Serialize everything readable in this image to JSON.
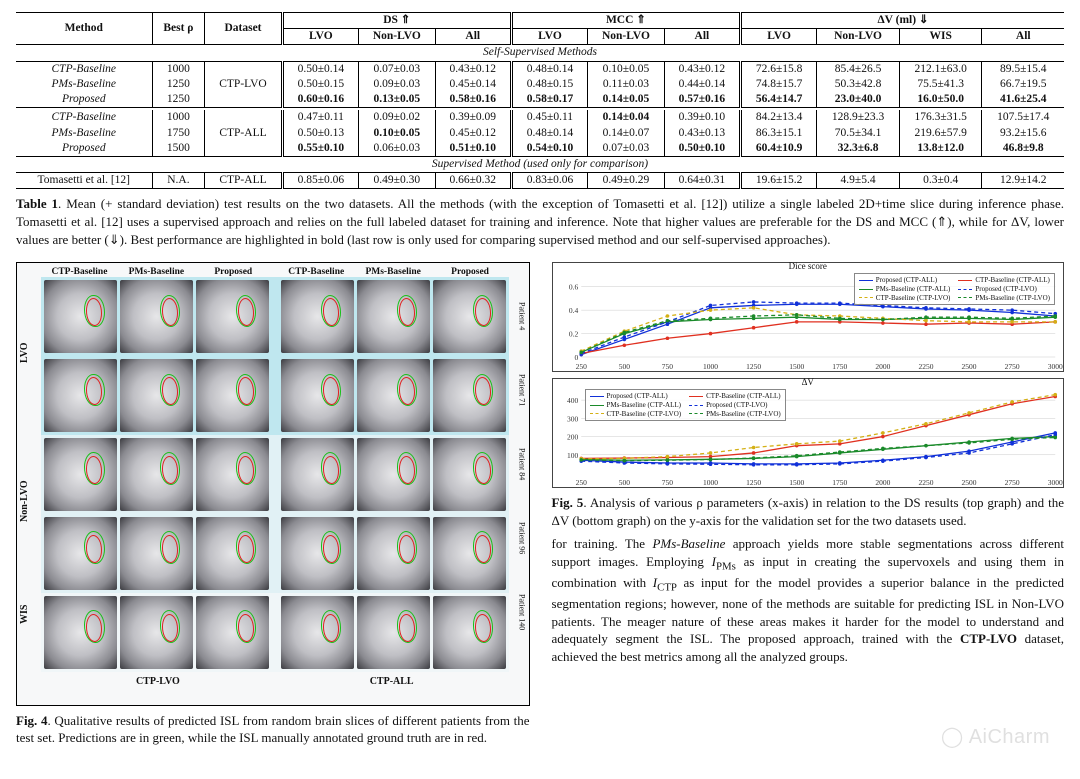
{
  "table": {
    "header": {
      "method": "Method",
      "bestrho": "Best ρ",
      "dataset": "Dataset",
      "ds": "DS ⇑",
      "mcc": "MCC ⇑",
      "dv": "ΔV (ml) ⇓",
      "sub": {
        "lvo": "LVO",
        "nonlvo": "Non-LVO",
        "all": "All",
        "wis": "WIS"
      }
    },
    "section_self": "Self-Supervised Methods",
    "section_sup": "Supervised Method (used only for comparison)",
    "groups": [
      {
        "dataset": "CTP-LVO",
        "rows": [
          {
            "m": "CTP-Baseline",
            "rho": "1000",
            "ds": [
              "0.50±0.14",
              "0.07±0.03",
              "0.43±0.12"
            ],
            "mcc": [
              "0.48±0.14",
              "0.10±0.05",
              "0.43±0.12"
            ],
            "dv": [
              "72.6±15.8",
              "85.4±26.5",
              "212.1±63.0",
              "89.5±15.4"
            ],
            "bold": []
          },
          {
            "m": "PMs-Baseline",
            "rho": "1250",
            "ds": [
              "0.50±0.15",
              "0.09±0.03",
              "0.45±0.14"
            ],
            "mcc": [
              "0.48±0.15",
              "0.11±0.03",
              "0.44±0.14"
            ],
            "dv": [
              "74.8±15.7",
              "50.3±42.8",
              "75.5±41.3",
              "66.7±19.5"
            ],
            "bold": []
          },
          {
            "m": "Proposed",
            "rho": "1250",
            "ds": [
              "0.60±0.16",
              "0.13±0.05",
              "0.58±0.16"
            ],
            "mcc": [
              "0.58±0.17",
              "0.14±0.05",
              "0.57±0.16"
            ],
            "dv": [
              "56.4±14.7",
              "23.0±40.0",
              "16.0±50.0",
              "41.6±25.4"
            ],
            "bold": [
              "ds0",
              "ds1",
              "ds2",
              "mcc0",
              "mcc1",
              "mcc2",
              "dv0",
              "dv1",
              "dv2",
              "dv3"
            ]
          }
        ]
      },
      {
        "dataset": "CTP-ALL",
        "rows": [
          {
            "m": "CTP-Baseline",
            "rho": "1000",
            "ds": [
              "0.47±0.11",
              "0.09±0.02",
              "0.39±0.09"
            ],
            "mcc": [
              "0.45±0.11",
              "0.14±0.04",
              "0.39±0.10"
            ],
            "dv": [
              "84.2±13.4",
              "128.9±23.3",
              "176.3±31.5",
              "107.5±17.4"
            ],
            "bold": [
              "mcc1"
            ]
          },
          {
            "m": "PMs-Baseline",
            "rho": "1750",
            "ds": [
              "0.50±0.13",
              "0.10±0.05",
              "0.45±0.12"
            ],
            "mcc": [
              "0.48±0.14",
              "0.14±0.07",
              "0.43±0.13"
            ],
            "dv": [
              "86.3±15.1",
              "70.5±34.1",
              "219.6±57.9",
              "93.2±15.6"
            ],
            "bold": [
              "ds1"
            ]
          },
          {
            "m": "Proposed",
            "rho": "1500",
            "ds": [
              "0.55±0.10",
              "0.06±0.03",
              "0.51±0.10"
            ],
            "mcc": [
              "0.54±0.10",
              "0.07±0.03",
              "0.50±0.10"
            ],
            "dv": [
              "60.4±10.9",
              "32.3±6.8",
              "13.8±12.0",
              "46.8±9.8"
            ],
            "bold": [
              "ds0",
              "ds2",
              "mcc0",
              "mcc2",
              "dv0",
              "dv1",
              "dv2",
              "dv3"
            ]
          }
        ]
      }
    ],
    "supervised": {
      "m": "Tomasetti et al. [12]",
      "rho": "N.A.",
      "dataset": "CTP-ALL",
      "ds": [
        "0.85±0.06",
        "0.49±0.30",
        "0.66±0.32"
      ],
      "mcc": [
        "0.83±0.06",
        "0.49±0.29",
        "0.64±0.31"
      ],
      "dv": [
        "19.6±15.2",
        "4.9±5.4",
        "0.3±0.4",
        "12.9±14.2"
      ]
    }
  },
  "table_caption": "Table 1. Mean (+ standard deviation) test results on the two datasets. All the methods (with the exception of Tomasetti et al. [12]) utilize a single labeled 2D+time slice during inference phase. Tomasetti et al. [12] uses a supervised approach and relies on the full labeled dataset for training and inference. Note that higher values are preferable for the DS and MCC (⇑), while for ΔV, lower values are better (⇓). Best performance are highlighted in bold (last row is only used for comparing supervised method and our self-supervised approaches).",
  "fig4": {
    "col_hdrs": [
      "CTP-Baseline",
      "PMs-Baseline",
      "Proposed"
    ],
    "row_groups": [
      {
        "label": "LVO",
        "tint": "tint-lvo",
        "patients": [
          "Patient 4",
          "Patient 71"
        ]
      },
      {
        "label": "Non-LVO",
        "tint": "tint-nlvo",
        "patients": [
          "Patient 84",
          "Patient 96"
        ]
      },
      {
        "label": "WIS",
        "tint": "tint-wis",
        "patients": [
          "Patient 140"
        ]
      }
    ],
    "bottom": [
      "CTP-LVO",
      "CTP-ALL"
    ],
    "caption": "Fig. 4. Qualitative results of predicted ISL from random brain slices of different patients from the test set. Predictions are in green, while the ISL manually annotated ground truth are in red."
  },
  "fig5": {
    "x_ticks": [
      250,
      500,
      750,
      1000,
      1250,
      1500,
      1750,
      2000,
      2250,
      2500,
      2750,
      3000
    ],
    "colors": {
      "prop": "#1030d8",
      "ctp": "#e03020",
      "pms": "#1a8a2a",
      "alt": "#d4b015"
    },
    "top": {
      "title": "Dice score",
      "ylim": [
        0,
        0.7
      ],
      "y_ticks": [
        0,
        0.2,
        0.4,
        0.6
      ],
      "legend_pos": "tr",
      "series": [
        {
          "name": "Proposed (CTP-ALL)",
          "color": "prop",
          "dash": false,
          "y": [
            0.02,
            0.15,
            0.28,
            0.42,
            0.44,
            0.45,
            0.45,
            0.43,
            0.41,
            0.4,
            0.38,
            0.35
          ]
        },
        {
          "name": "CTP-Baseline (CTP-ALL)",
          "color": "ctp",
          "dash": false,
          "y": [
            0.03,
            0.1,
            0.16,
            0.2,
            0.25,
            0.3,
            0.3,
            0.29,
            0.28,
            0.29,
            0.28,
            0.3
          ]
        },
        {
          "name": "PMs-Baseline (CTP-ALL)",
          "color": "pms",
          "dash": false,
          "y": [
            0.04,
            0.2,
            0.3,
            0.32,
            0.33,
            0.34,
            0.32,
            0.32,
            0.33,
            0.33,
            0.32,
            0.34
          ]
        },
        {
          "name": "Proposed (CTP-LVO)",
          "color": "prop",
          "dash": true,
          "y": [
            0.03,
            0.17,
            0.3,
            0.44,
            0.47,
            0.46,
            0.46,
            0.44,
            0.42,
            0.41,
            0.4,
            0.37
          ]
        },
        {
          "name": "CTP-Baseline (CTP-LVO)",
          "color": "alt",
          "dash": true,
          "y": [
            0.05,
            0.22,
            0.35,
            0.4,
            0.42,
            0.36,
            0.35,
            0.33,
            0.31,
            0.3,
            0.3,
            0.3
          ]
        },
        {
          "name": "PMs-Baseline (CTP-LVO)",
          "color": "pms",
          "dash": true,
          "y": [
            0.04,
            0.21,
            0.31,
            0.33,
            0.35,
            0.36,
            0.33,
            0.32,
            0.34,
            0.34,
            0.33,
            0.35
          ]
        }
      ]
    },
    "bottom": {
      "title": "ΔV",
      "ylim": [
        0,
        450
      ],
      "y_ticks": [
        100,
        200,
        300,
        400
      ],
      "legend_pos": "tl",
      "series": [
        {
          "name": "Proposed (CTP-ALL)",
          "color": "prop",
          "dash": false,
          "y": [
            70,
            60,
            55,
            55,
            50,
            50,
            55,
            70,
            90,
            120,
            170,
            220
          ]
        },
        {
          "name": "CTP-Baseline (CTP-ALL)",
          "color": "ctp",
          "dash": false,
          "y": [
            80,
            82,
            85,
            90,
            110,
            150,
            160,
            200,
            260,
            320,
            380,
            420
          ]
        },
        {
          "name": "PMs-Baseline (CTP-ALL)",
          "color": "pms",
          "dash": false,
          "y": [
            75,
            70,
            72,
            75,
            80,
            90,
            110,
            130,
            150,
            170,
            190,
            200
          ]
        },
        {
          "name": "Proposed (CTP-LVO)",
          "color": "prop",
          "dash": true,
          "y": [
            65,
            55,
            50,
            48,
            45,
            45,
            50,
            65,
            85,
            110,
            160,
            210
          ]
        },
        {
          "name": "CTP-Baseline (CTP-LVO)",
          "color": "alt",
          "dash": true,
          "y": [
            78,
            80,
            90,
            110,
            140,
            160,
            175,
            220,
            270,
            330,
            390,
            430
          ]
        },
        {
          "name": "PMs-Baseline (CTP-LVO)",
          "color": "pms",
          "dash": true,
          "y": [
            72,
            68,
            70,
            74,
            82,
            95,
            115,
            135,
            150,
            165,
            185,
            195
          ]
        }
      ]
    },
    "caption": "Fig. 5. Analysis of various ρ parameters (x-axis) in relation to the DS results (top graph) and the ΔV (bottom graph) on the y-axis for the validation set for the two datasets used."
  },
  "bodytext": "for training. The PMs-Baseline approach yields more stable segmentations across different support images. Employing IPMs as input in creating the supervoxels and using them in combination with ICTP as input for the model provides a superior balance in the predicted segmentation regions; however, none of the methods are suitable for predicting ISL in Non-LVO patients. The meager nature of these areas makes it harder for the model to understand and adequately segment the ISL. The proposed approach, trained with the CTP-LVO dataset, achieved the best metrics among all the analyzed groups.",
  "watermark": "◯ AiCharm"
}
